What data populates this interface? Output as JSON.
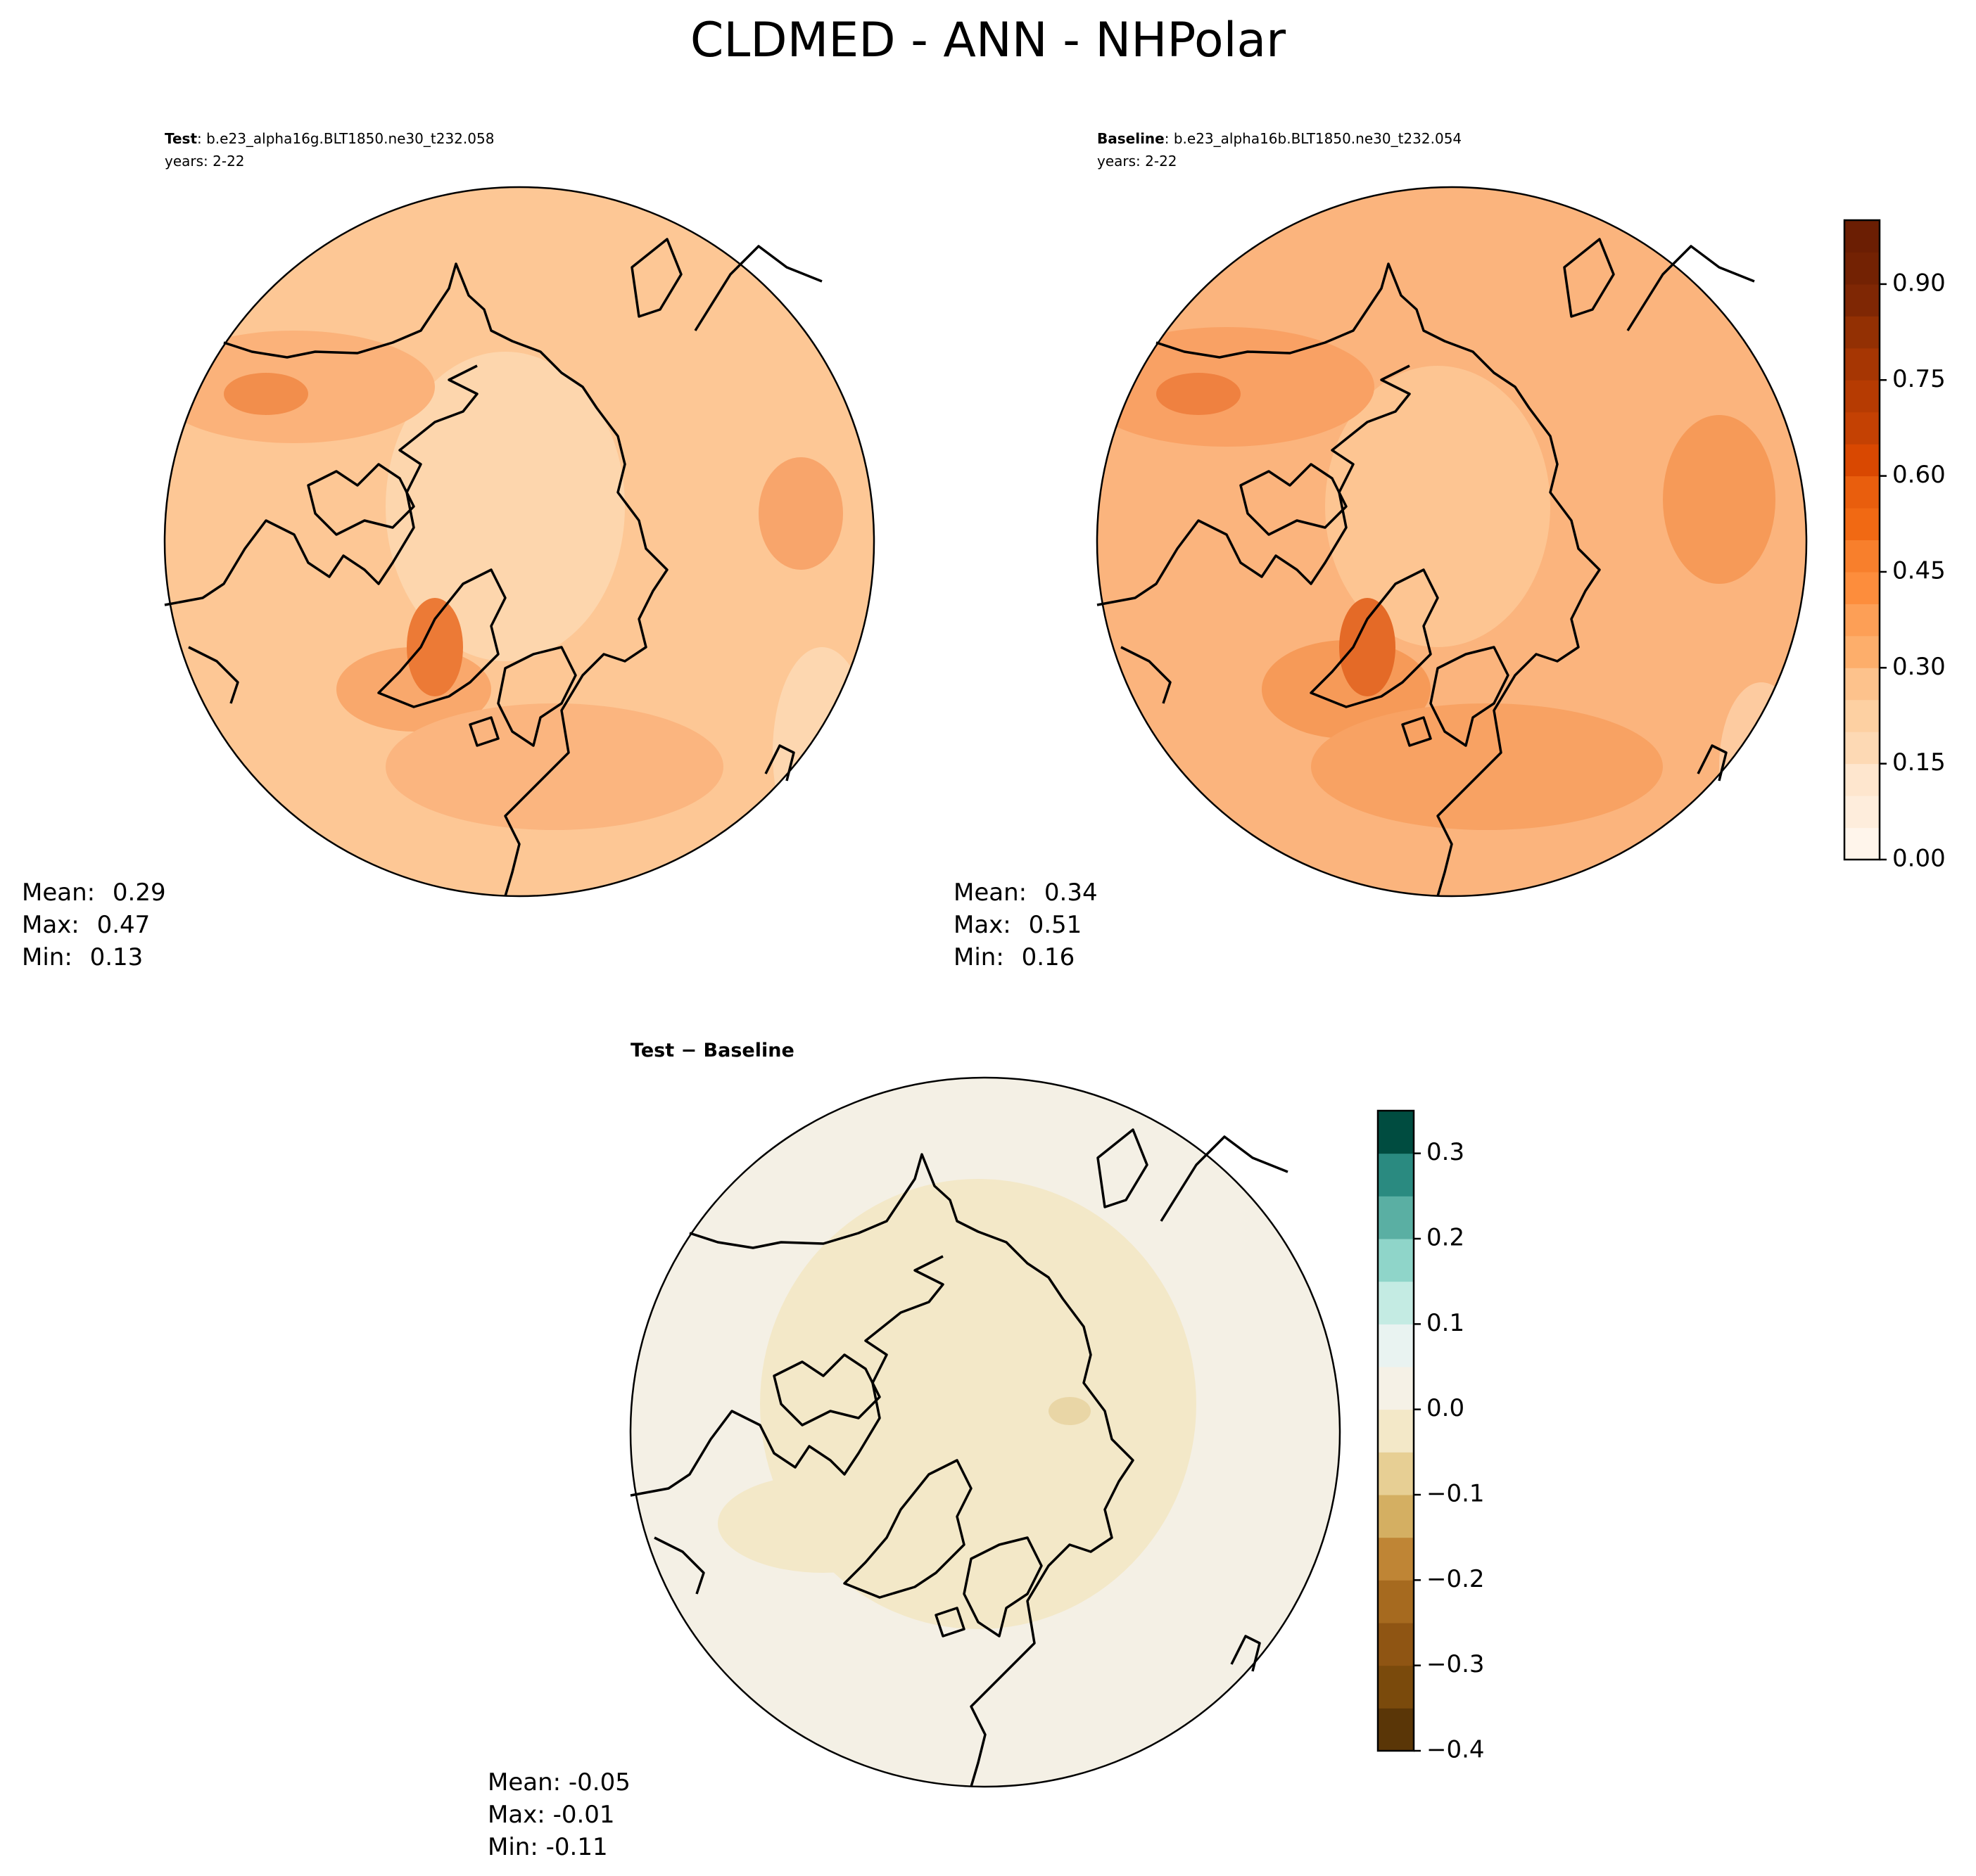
{
  "title": "CLDMED - ANN - NHPolar",
  "panels": [
    {
      "label": "Test",
      "case": ": b.e23_alpha16g.BLT1850.ne30_t232.058",
      "years": "years: 2-22",
      "stats": [
        {
          "name": "Mean:",
          "value": 0.29
        },
        {
          "name": "Max:",
          "value": 0.47
        },
        {
          "name": "Min:",
          "value": 0.13
        }
      ]
    },
    {
      "label": "Baseline",
      "case": ": b.e23_alpha16b.BLT1850.ne30_t232.054",
      "years": "years: 2-22",
      "stats": [
        {
          "name": "Mean:",
          "value": 0.34
        },
        {
          "name": "Max:",
          "value": 0.51
        },
        {
          "name": "Min:",
          "value": 0.16
        }
      ]
    },
    {
      "title": "Test − Baseline",
      "stats": [
        {
          "name": "Mean:",
          "value": -0.05
        },
        {
          "name": "Max:",
          "value": -0.01
        },
        {
          "name": "Min:",
          "value": -0.11
        }
      ]
    }
  ],
  "colorbars": [
    {
      "ylim": [
        0,
        1
      ],
      "yticks": [
        {
          "value": 0,
          "label": "0.00"
        },
        {
          "value": 0.15,
          "label": "0.15"
        },
        {
          "value": 0.3,
          "label": "0.30"
        },
        {
          "value": 0.45,
          "label": "0.45"
        },
        {
          "value": 0.6,
          "label": "0.60"
        },
        {
          "value": 0.75,
          "label": "0.75"
        },
        {
          "value": 0.9,
          "label": "0.90"
        }
      ],
      "colors": [
        "#fff5eb",
        "#feeddc",
        "#fee6ce",
        "#fdd9b4",
        "#fdd0a2",
        "#fdc28c",
        "#fdae6b",
        "#fd9f56",
        "#fd8d3c",
        "#f87f2c",
        "#f16913",
        "#e95e0d",
        "#d94801",
        "#c44103",
        "#b63b02",
        "#a63603",
        "#933003",
        "#7f2704",
        "#732203",
        "#6b1e03"
      ]
    },
    {
      "ylim": [
        -0.4,
        0.35
      ],
      "yticks": [
        {
          "value": -0.4,
          "label": "−0.4"
        },
        {
          "value": -0.3,
          "label": "−0.3"
        },
        {
          "value": -0.2,
          "label": "−0.2"
        },
        {
          "value": -0.1,
          "label": "−0.1"
        },
        {
          "value": 0,
          "label": "0.0"
        },
        {
          "value": 0.1,
          "label": "0.1"
        },
        {
          "value": 0.2,
          "label": "0.2"
        },
        {
          "value": 0.3,
          "label": "0.3"
        }
      ],
      "colors": [
        "#5a3607",
        "#7a4a0c",
        "#8f5513",
        "#a66a1f",
        "#bf8535",
        "#d4af62",
        "#e7cf94",
        "#f3e8c8",
        "#f5f1e6",
        "#e9f3f1",
        "#c4ebe3",
        "#8fd5c9",
        "#5aafa3",
        "#2a8a80",
        "#004c40"
      ]
    }
  ]
}
